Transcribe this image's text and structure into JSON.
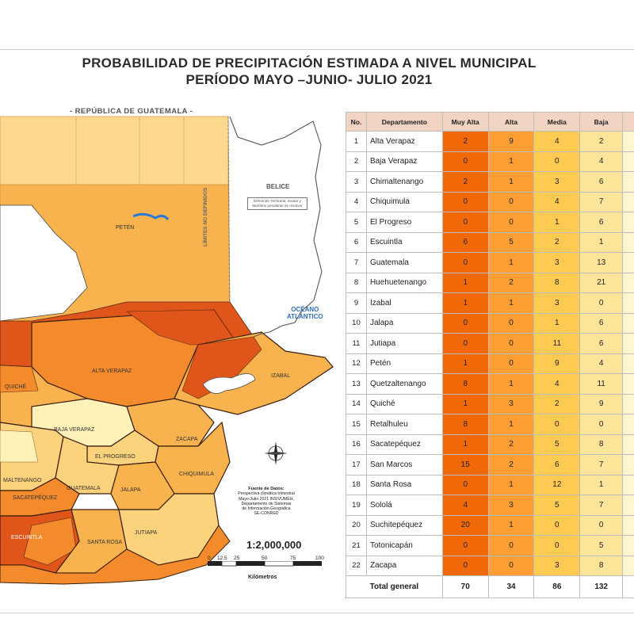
{
  "title": {
    "line1": "PROBABILIDAD DE PRECIPITACIÓN ESTIMADA  A NIVEL MUNICIPAL",
    "line2": "PERÍODO MAYO –JUNIO- JULIO 2021"
  },
  "map": {
    "country_label": "- REPÚBLICA DE GUATEMALA -",
    "belice_label": "BELICE",
    "diferendo": "Diferendo Territorial, Insular y Marítimo pendiente de resolver",
    "limites": "LÍMITES NO DEFINIDOS",
    "oceano_line1": "OCÉANO",
    "oceano_line2": "ATLÁNTICO",
    "dept_labels": {
      "peten": "PETÉN",
      "alta_verapaz": "ALTA VERAPAZ",
      "izabal": "IZABAL",
      "quiche": "QUICHÉ",
      "baja_verapaz": "BAJA VERAPAZ",
      "zacapa": "ZACAPA",
      "el_progreso": "EL PROGRESO",
      "chiquimula": "CHIQUIMULA",
      "chimaltenango": "MALTENANGO",
      "guatemala": "GUATEMALA",
      "jalapa": "JALAPA",
      "sacatepequez": "SACATEPÉQUEZ",
      "escuintla": "ESCUINTLA",
      "santa_rosa": "SANTA ROSA",
      "jutiapa": "JUTIAPA"
    },
    "source": {
      "heading": "Fuente de Datos:",
      "line1": "Perspectiva climática trimestral",
      "line2": "Mayo-Julio 2021 INSIVUMEH,",
      "line3": "Departamento de Sistemas",
      "line4": "de Información Geográfica",
      "line5": "SE-CONRED"
    },
    "scale": {
      "ratio": "1:2,000,000",
      "ticks": [
        "0",
        "12.5",
        "25",
        "50",
        "75",
        "100"
      ],
      "units": "Kilómetros"
    },
    "colors": {
      "muy_alta": "#e0561a",
      "alta": "#f38a2c",
      "media": "#f8b24e",
      "baja": "#fcd27c",
      "muy_baja": "#fff1b8",
      "water": "#2b7bd6"
    }
  },
  "table": {
    "headers": [
      "No.",
      "Departamento",
      "Muy Alta",
      "Alta",
      "Media",
      "Baja"
    ],
    "rows": [
      {
        "no": "1",
        "dep": "Alta Verapaz",
        "va": "2",
        "al": "9",
        "me": "4",
        "ba": "2"
      },
      {
        "no": "2",
        "dep": "Baja Verapaz",
        "va": "0",
        "al": "1",
        "me": "0",
        "ba": "4"
      },
      {
        "no": "3",
        "dep": "Chimaltenango",
        "va": "2",
        "al": "1",
        "me": "3",
        "ba": "6"
      },
      {
        "no": "4",
        "dep": "Chiquimula",
        "va": "0",
        "al": "0",
        "me": "4",
        "ba": "7"
      },
      {
        "no": "5",
        "dep": "El Progreso",
        "va": "0",
        "al": "0",
        "me": "1",
        "ba": "6"
      },
      {
        "no": "6",
        "dep": "Escuintla",
        "va": "6",
        "al": "5",
        "me": "2",
        "ba": "1"
      },
      {
        "no": "7",
        "dep": "Guatemala",
        "va": "0",
        "al": "1",
        "me": "3",
        "ba": "13"
      },
      {
        "no": "8",
        "dep": "Huehuetenango",
        "va": "1",
        "al": "2",
        "me": "8",
        "ba": "21"
      },
      {
        "no": "9",
        "dep": "Izabal",
        "va": "1",
        "al": "1",
        "me": "3",
        "ba": "0"
      },
      {
        "no": "10",
        "dep": "Jalapa",
        "va": "0",
        "al": "0",
        "me": "1",
        "ba": "6"
      },
      {
        "no": "11",
        "dep": "Jutiapa",
        "va": "0",
        "al": "0",
        "me": "11",
        "ba": "6"
      },
      {
        "no": "12",
        "dep": "Petén",
        "va": "1",
        "al": "0",
        "me": "9",
        "ba": "4"
      },
      {
        "no": "13",
        "dep": "Quetzaltenango",
        "va": "8",
        "al": "1",
        "me": "4",
        "ba": "11"
      },
      {
        "no": "14",
        "dep": "Quiché",
        "va": "1",
        "al": "3",
        "me": "2",
        "ba": "9"
      },
      {
        "no": "15",
        "dep": "Retalhuleu",
        "va": "8",
        "al": "1",
        "me": "0",
        "ba": "0"
      },
      {
        "no": "16",
        "dep": "Sacatepéquez",
        "va": "1",
        "al": "2",
        "me": "5",
        "ba": "8"
      },
      {
        "no": "17",
        "dep": "San Marcos",
        "va": "15",
        "al": "2",
        "me": "6",
        "ba": "7"
      },
      {
        "no": "18",
        "dep": "Santa Rosa",
        "va": "0",
        "al": "1",
        "me": "12",
        "ba": "1"
      },
      {
        "no": "19",
        "dep": "Sololá",
        "va": "4",
        "al": "3",
        "me": "5",
        "ba": "7"
      },
      {
        "no": "20",
        "dep": "Suchitepéquez",
        "va": "20",
        "al": "1",
        "me": "0",
        "ba": "0"
      },
      {
        "no": "21",
        "dep": "Totonicapán",
        "va": "0",
        "al": "0",
        "me": "0",
        "ba": "5"
      },
      {
        "no": "22",
        "dep": "Zacapa",
        "va": "0",
        "al": "0",
        "me": "3",
        "ba": "8"
      }
    ],
    "total": {
      "label": "Total general",
      "va": "70",
      "al": "34",
      "me": "86",
      "ba": "132"
    }
  }
}
